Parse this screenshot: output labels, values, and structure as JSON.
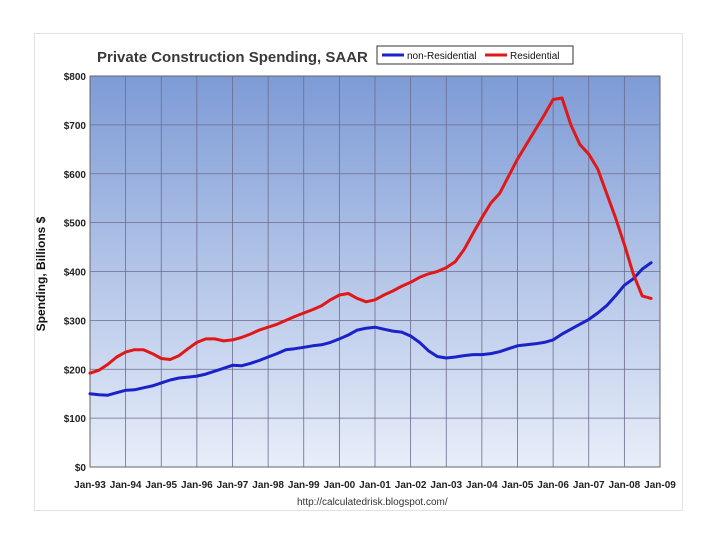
{
  "chart_data": {
    "type": "line",
    "title": "Private Construction Spending, SAAR",
    "ylabel": "Spending, Billions $",
    "xlabel": "",
    "source": "http://calculatedrisk.blogspot.com/",
    "ylim": [
      0,
      800
    ],
    "xlim": [
      1993.0,
      2009.0
    ],
    "y_ticks": [
      "$0",
      "$100",
      "$200",
      "$300",
      "$400",
      "$500",
      "$600",
      "$700",
      "$800"
    ],
    "y_tick_values": [
      0,
      100,
      200,
      300,
      400,
      500,
      600,
      700,
      800
    ],
    "x_ticks": [
      "Jan-93",
      "Jan-94",
      "Jan-95",
      "Jan-96",
      "Jan-97",
      "Jan-98",
      "Jan-99",
      "Jan-00",
      "Jan-01",
      "Jan-02",
      "Jan-03",
      "Jan-04",
      "Jan-05",
      "Jan-06",
      "Jan-07",
      "Jan-08",
      "Jan-09"
    ],
    "x_tick_values": [
      1993,
      1994,
      1995,
      1996,
      1997,
      1998,
      1999,
      2000,
      2001,
      2002,
      2003,
      2004,
      2005,
      2006,
      2007,
      2008,
      2009
    ],
    "grid": true,
    "legend_position": "top-right",
    "series": [
      {
        "name": "non-Residential",
        "color": "#1a22c8",
        "x": [
          1993.0,
          1993.25,
          1993.5,
          1993.75,
          1994.0,
          1994.25,
          1994.5,
          1994.75,
          1995.0,
          1995.25,
          1995.5,
          1995.75,
          1996.0,
          1996.25,
          1996.5,
          1996.75,
          1997.0,
          1997.25,
          1997.5,
          1997.75,
          1998.0,
          1998.25,
          1998.5,
          1998.75,
          1999.0,
          1999.25,
          1999.5,
          1999.75,
          2000.0,
          2000.25,
          2000.5,
          2000.75,
          2001.0,
          2001.25,
          2001.5,
          2001.75,
          2002.0,
          2002.25,
          2002.5,
          2002.75,
          2003.0,
          2003.25,
          2003.5,
          2003.75,
          2004.0,
          2004.25,
          2004.5,
          2004.75,
          2005.0,
          2005.25,
          2005.5,
          2005.75,
          2006.0,
          2006.25,
          2006.5,
          2006.75,
          2007.0,
          2007.25,
          2007.5,
          2007.75,
          2008.0,
          2008.25,
          2008.5,
          2008.75
        ],
        "values": [
          150,
          148,
          147,
          152,
          157,
          158,
          162,
          166,
          172,
          178,
          182,
          184,
          186,
          190,
          196,
          202,
          208,
          207,
          212,
          218,
          225,
          232,
          240,
          242,
          245,
          248,
          250,
          255,
          262,
          270,
          280,
          284,
          286,
          282,
          278,
          276,
          268,
          255,
          238,
          226,
          223,
          225,
          228,
          230,
          230,
          232,
          236,
          242,
          248,
          250,
          252,
          255,
          260,
          272,
          282,
          292,
          302,
          315,
          330,
          350,
          372,
          385,
          405,
          418
        ]
      },
      {
        "name": "Residential",
        "color": "#e01818",
        "x": [
          1993.0,
          1993.25,
          1993.5,
          1993.75,
          1994.0,
          1994.25,
          1994.5,
          1994.75,
          1995.0,
          1995.25,
          1995.5,
          1995.75,
          1996.0,
          1996.25,
          1996.5,
          1996.75,
          1997.0,
          1997.25,
          1997.5,
          1997.75,
          1998.0,
          1998.25,
          1998.5,
          1998.75,
          1999.0,
          1999.25,
          1999.5,
          1999.75,
          2000.0,
          2000.25,
          2000.5,
          2000.75,
          2001.0,
          2001.25,
          2001.5,
          2001.75,
          2002.0,
          2002.25,
          2002.5,
          2002.75,
          2003.0,
          2003.25,
          2003.5,
          2003.75,
          2004.0,
          2004.25,
          2004.5,
          2004.75,
          2005.0,
          2005.25,
          2005.5,
          2005.75,
          2006.0,
          2006.25,
          2006.5,
          2006.75,
          2007.0,
          2007.25,
          2007.5,
          2007.75,
          2008.0,
          2008.25,
          2008.5,
          2008.75
        ],
        "values": [
          192,
          198,
          210,
          225,
          235,
          240,
          240,
          232,
          222,
          220,
          228,
          242,
          255,
          262,
          262,
          258,
          260,
          265,
          272,
          280,
          286,
          292,
          300,
          308,
          315,
          322,
          330,
          342,
          352,
          355,
          345,
          338,
          342,
          352,
          360,
          370,
          378,
          388,
          395,
          400,
          408,
          420,
          445,
          478,
          510,
          540,
          560,
          595,
          630,
          660,
          690,
          720,
          752,
          755,
          700,
          660,
          640,
          610,
          560,
          510,
          455,
          395,
          350,
          345
        ]
      }
    ]
  }
}
